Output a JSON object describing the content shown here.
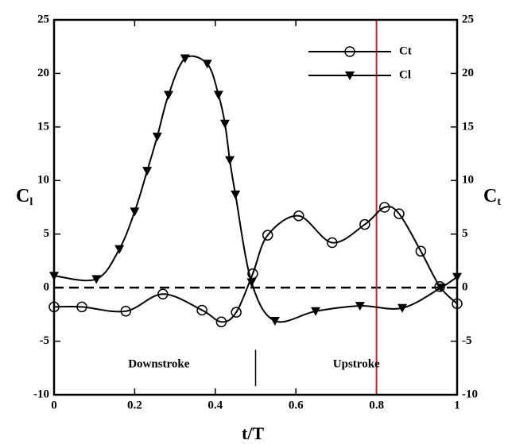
{
  "chart_data": {
    "type": "line",
    "xlabel": "t/T",
    "ylabel": "C",
    "ylabel_sub": "l",
    "y2label": "C",
    "y2label_sub": "t",
    "xlim": [
      0,
      1
    ],
    "xticks": [
      0,
      0.2,
      0.4,
      0.6,
      0.8,
      1
    ],
    "ylim": [
      -10,
      25
    ],
    "yticks": [
      -10,
      -5,
      0,
      5,
      10,
      15,
      20,
      25
    ],
    "y2lim": [
      -10,
      25
    ],
    "y2ticks": [
      -10,
      -5,
      0,
      5,
      10,
      15,
      20,
      25
    ],
    "legend": "upper right",
    "series": [
      {
        "name": "Ct",
        "color": "#000000",
        "marker": "circle",
        "axis": "y2",
        "x": [
          0,
          0.069,
          0.178,
          0.27,
          0.367,
          0.415,
          0.452,
          0.493,
          0.53,
          0.607,
          0.69,
          0.771,
          0.82,
          0.856,
          0.91,
          0.957,
          1
        ],
        "values": [
          -1.8,
          -1.8,
          -2.2,
          -0.6,
          -2.1,
          -3.2,
          -2.3,
          1.3,
          4.9,
          6.7,
          4.2,
          5.9,
          7.5,
          6.9,
          3.4,
          0.1,
          -1.5
        ]
      },
      {
        "name": "Cl",
        "color": "#000000",
        "marker": "triangle",
        "x": [
          0,
          0.105,
          0.162,
          0.2,
          0.231,
          0.256,
          0.284,
          0.325,
          0.38,
          0.408,
          0.424,
          0.436,
          0.45,
          0.49,
          0.548,
          0.649,
          0.759,
          0.864,
          0.96,
          1
        ],
        "values": [
          1.1,
          0.8,
          3.6,
          7.1,
          10.9,
          14.1,
          18,
          21.4,
          20.9,
          18,
          15.3,
          11.9,
          8.7,
          0.5,
          -3.1,
          -2.2,
          -1.7,
          -1.9,
          0,
          1
        ]
      }
    ],
    "zero_line": 0,
    "marker_line": {
      "x": 0.8,
      "color": "#c0272d"
    },
    "divider": {
      "x": 0.5,
      "y": [
        -5.8,
        -9.2
      ]
    },
    "annotations": [
      {
        "text": "Downstroke",
        "x": 0.26,
        "y": -7.2
      },
      {
        "text": "Upstroke",
        "x": 0.75,
        "y": -7.2
      }
    ]
  }
}
